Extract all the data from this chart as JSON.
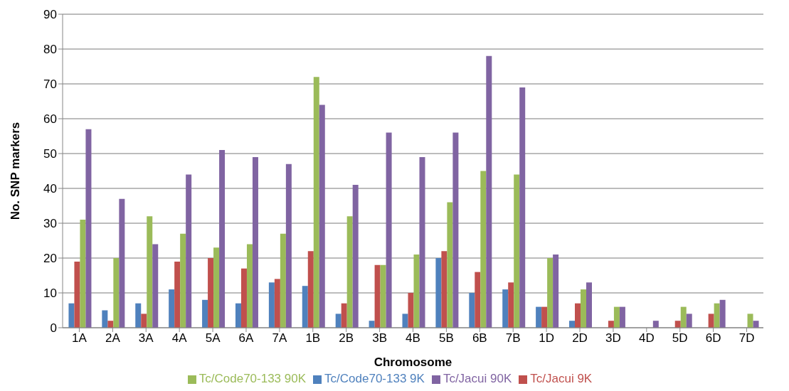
{
  "chart_data": {
    "type": "bar",
    "xlabel": "Chromosome",
    "ylabel": "No. SNP markers",
    "categories": [
      "1A",
      "2A",
      "3A",
      "4A",
      "5A",
      "6A",
      "7A",
      "1B",
      "2B",
      "3B",
      "4B",
      "5B",
      "6B",
      "7B",
      "1D",
      "2D",
      "3D",
      "4D",
      "5D",
      "6D",
      "7D"
    ],
    "series": [
      {
        "name": "Tc/Code70-133 9K",
        "color": "#4f81bd",
        "values": [
          7,
          5,
          7,
          11,
          8,
          7,
          13,
          12,
          4,
          2,
          4,
          20,
          10,
          11,
          6,
          2,
          0,
          0,
          0,
          0,
          0
        ]
      },
      {
        "name": "Tc/Jacui 9K",
        "color": "#c0504d",
        "values": [
          19,
          2,
          4,
          19,
          20,
          17,
          14,
          22,
          7,
          18,
          10,
          22,
          16,
          13,
          6,
          7,
          2,
          0,
          2,
          4,
          0
        ]
      },
      {
        "name": "Tc/Code70-133 90K",
        "color": "#9bbb59",
        "values": [
          31,
          20,
          32,
          27,
          23,
          24,
          27,
          72,
          32,
          18,
          21,
          36,
          45,
          44,
          20,
          11,
          6,
          0,
          6,
          7,
          4
        ]
      },
      {
        "name": "Tc/Jacui 90K",
        "color": "#8064a2",
        "values": [
          57,
          37,
          24,
          44,
          51,
          49,
          47,
          64,
          41,
          56,
          49,
          56,
          78,
          69,
          21,
          13,
          6,
          2,
          4,
          8,
          2
        ]
      }
    ],
    "ylim": [
      0,
      90
    ],
    "yticks": [
      0,
      10,
      20,
      30,
      40,
      50,
      60,
      70,
      80,
      90
    ],
    "grid": "y",
    "legend": "bottom"
  }
}
